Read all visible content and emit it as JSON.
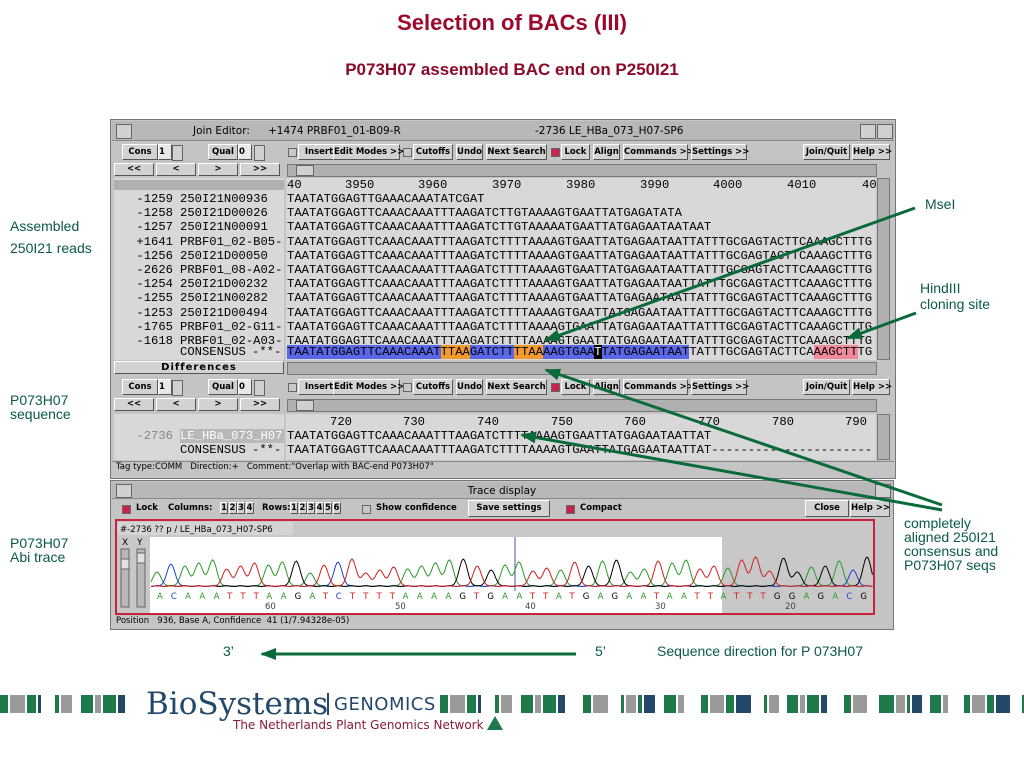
{
  "slide": {
    "title": "Selection of BACs (III)",
    "subtitle": "P073H07 assembled BAC end on P250I21"
  },
  "side_labels": {
    "assembled": [
      "Assembled",
      "250I21 reads"
    ],
    "sequence": [
      "P073H07",
      "sequence"
    ],
    "trace": [
      "P073H07",
      "Abi trace"
    ]
  },
  "annotations": {
    "msei": "MseI",
    "hindiii": [
      "HindIII",
      "cloning site"
    ],
    "aligned": [
      "completely",
      "aligned 250I21",
      "consensus and",
      "P073H07 seqs"
    ]
  },
  "direction": {
    "three_prime": "3’",
    "five_prime": "5’",
    "text": "Sequence direction for P 073H07"
  },
  "join_editor": {
    "title": "Join Editor:",
    "left_contig": "+1474 PRBF01_01-B09-R",
    "right_contig": "-2736 LE_HBa_073_H07-SP6",
    "cons_label": "Cons",
    "cons_value": "1",
    "qual_label": "Qual",
    "qual_value": "0",
    "nav": [
      "<<",
      "<",
      ">",
      ">>"
    ],
    "toolbar": [
      "Insert",
      "Edit Modes >>",
      "Cutoffs",
      "Undo",
      "Next Search",
      "Lock",
      "Align",
      "Commands >>",
      "Settings >>",
      "Join/Quit",
      "Help >>"
    ],
    "ruler": [
      "40",
      "3950",
      "3960",
      "3970",
      "3980",
      "3990",
      "4000",
      "4010",
      "40"
    ],
    "reads": [
      {
        "id": "-1259",
        "name": "250I21N00936",
        "seq": "TAATATGGAGTTGAAACAAATATCGAT"
      },
      {
        "id": "-1258",
        "name": "250I21D00026",
        "seq": "TAATATGGAGTTCAAACAAATTTAAGATCTTGTAAAAGTGAATTATGAGATATA"
      },
      {
        "id": "-1257",
        "name": "250I21N00091",
        "seq": "TAATATGGAGTTCAAACAAATTTAAGATCTTGTAAAAATGAATTATGAGAATAATAAT"
      },
      {
        "id": "+1641",
        "name": "PRBF01_02-B05-",
        "seq": "TAATATGGAGTTCAAACAAATTTAAGATCTTTTAAAAGTGAATTATGAGAATAATTATTTGCGAGTACTTCAAAGCTTTG"
      },
      {
        "id": "-1256",
        "name": "250I21D00050",
        "seq": "TAATATGGAGTTCAAACAAATTTAAGATCTTTTAAAAGTGAATTATGAGAATAATTATTTGCGAGTACTTCAAAGCTTTG"
      },
      {
        "id": "-2626",
        "name": "PRBF01_08-A02-",
        "seq": "TAATATGGAGTTCAAACAAATTTAAGATCTTTTAAAAGTGAATTATGAGAATAATTATTTGCGAGTACTTCAAAGCTTTG"
      },
      {
        "id": "-1254",
        "name": "250I21D00232",
        "seq": "TAATATGGAGTTCAAACAAATTTAAGATCTTTTAAAAGTGAATTATGAGAATAATTATTTGCGAGTACTTCAAAGCTTTG"
      },
      {
        "id": "-1255",
        "name": "250I21N00282",
        "seq": "TAATATGGAGTTCAAACAAATTTAAGATCTTTTAAAAGTGAATTATGAGAATAATTATTTGCGAGTACTTCAAAGCTTTG"
      },
      {
        "id": "-1253",
        "name": "250I21D00494",
        "seq": "TAATATGGAGTTCAAACAAATTTAAGATCTTTTAAAAGTGAATTATGAGAATAATTATTTGCGAGTACTTCAAAGCTTTG"
      },
      {
        "id": "-1765",
        "name": "PRBF01_02-G11-",
        "seq": "TAATATGGAGTTCAAACAAATTTAAGATCTTTTAAAAGTGAATTATGAGAATAATTATTTGCGAGTACTTCAAAGCTTTG"
      },
      {
        "id": "-1618",
        "name": "PRBF01_02-A03-",
        "seq": "TAATATGGAGTTCAAACAAATTTAAGATCTTTTAAAAGTGAATTATGAGAATAATTATTTGCGAGTACTTCAAAGCTTTG"
      }
    ],
    "consensus": {
      "name": "CONSENSUS",
      "strand": "-**-",
      "segments": [
        {
          "text": "TAATATGGAGTTCAAACAAAT",
          "color": "#5a68e8"
        },
        {
          "text": "TTAA",
          "color": "#f29a2e"
        },
        {
          "text": "GATCTT",
          "color": "#5a68e8"
        },
        {
          "text": "TTAA",
          "color": "#f29a2e"
        },
        {
          "text": "AAGTGAA",
          "color": "#5a68e8"
        },
        {
          "text": "T",
          "color": "#000000"
        },
        {
          "text": "TATGAGAATAAT",
          "color": "#5a68e8"
        },
        {
          "text": "TATTTGCGAGTACTTCA",
          "color": "#d8d8d8"
        },
        {
          "text": "AAGCTT",
          "color": "#f08a9a"
        },
        {
          "text": "TG",
          "color": "#d8d8d8"
        }
      ]
    },
    "differences": "Differences"
  },
  "differences_panel": {
    "cons_label": "Cons",
    "cons_value": "1",
    "qual_label": "Qual",
    "qual_value": "0",
    "nav": [
      "<<",
      "<",
      ">",
      ">>"
    ],
    "toolbar": [
      "Insert",
      "Edit Modes >>",
      "Cutoffs",
      "Undo",
      "Next Search",
      "Lock",
      "Align",
      "Commands >>",
      "Settings >>",
      "Join/Quit",
      "Help >>"
    ],
    "ruler": [
      "720",
      "730",
      "740",
      "750",
      "760",
      "770",
      "780",
      "790"
    ],
    "read": {
      "id": "-2736",
      "name": "LE_HBa_073_H07",
      "seq": "TAATATGGAGTTCAAACAAATTTAAGATCTTTTAAAAGTGAATTATGAGAATAATTAT"
    },
    "consensus": {
      "name": "CONSENSUS",
      "strand": "-**-",
      "seq": "TAATATGGAGTTCAAACAAATTTAAGATCTTTTAAAAGTGAATTATGAGAATAATTAT----------------------"
    },
    "status": "Tag type:COMM   Direction:+   Comment:\"Overlap with BAC-end P073H07\""
  },
  "trace": {
    "title": "Trace display",
    "lock": "Lock",
    "columns_label": "Columns:",
    "columns": [
      "1",
      "2",
      "3",
      "4"
    ],
    "rows_label": "Rows:",
    "rows": [
      "1",
      "2",
      "3",
      "4",
      "5",
      "6"
    ],
    "show_confidence": "Show confidence",
    "save_settings": "Save settings",
    "compact": "Compact",
    "close": "Close",
    "help": "Help >>",
    "header": "#-2736 ?? p / LE_HBa_073_H07-SP6",
    "x_label": "X",
    "y_label": "Y",
    "bases": "ACAAATTTAAGATCTTTTAAAAGTGAATTATGAGAATAATTATTTGGAGACG",
    "positions": [
      "60",
      "50",
      "40",
      "30",
      "20"
    ],
    "status": "Position   936, Base A, Confidence  41 (1/7.94328e-05)"
  },
  "footer": {
    "brand": "BioSystems",
    "brand_suffix": "GENOMICS",
    "tagline": "The Netherlands Plant Genomics Network"
  }
}
